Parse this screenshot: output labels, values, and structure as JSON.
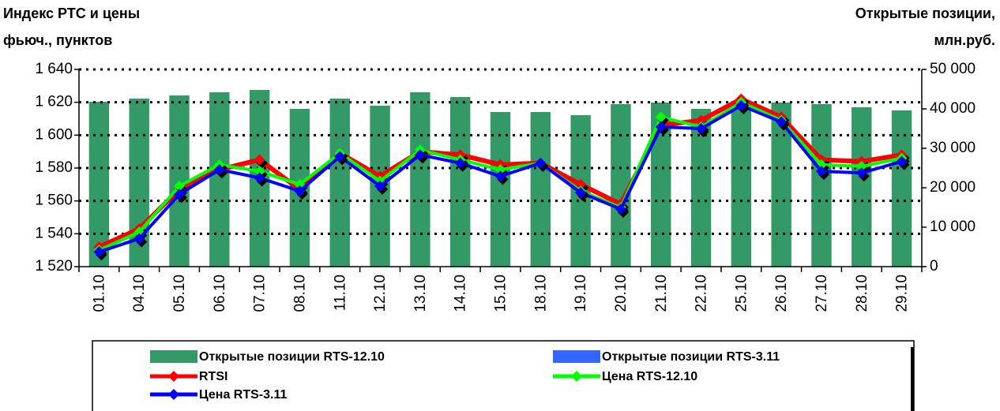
{
  "chart_data": {
    "type": "bar_line",
    "y_label": [
      "Индекс РТС и цены",
      "фьюч., пунктов"
    ],
    "y2_label": [
      "Открытые позиции,",
      "млн.руб."
    ],
    "categories": [
      "01.10",
      "04.10",
      "05.10",
      "06.10",
      "07.10",
      "08.10",
      "11.10",
      "12.10",
      "13.10",
      "14.10",
      "15.10",
      "18.10",
      "19.10",
      "20.10",
      "21.10",
      "22.10",
      "25.10",
      "26.10",
      "27.10",
      "28.10",
      "29.10"
    ],
    "ylim": [
      1520,
      1640
    ],
    "yticks": [
      {
        "value": 1520,
        "label": "1 520"
      },
      {
        "value": 1540,
        "label": "1 540"
      },
      {
        "value": 1560,
        "label": "1 560"
      },
      {
        "value": 1580,
        "label": "1 580"
      },
      {
        "value": 1600,
        "label": "1 600"
      },
      {
        "value": 1620,
        "label": "1 620"
      },
      {
        "value": 1640,
        "label": "1 640"
      }
    ],
    "y2lim": [
      0,
      50000
    ],
    "y2ticks": [
      0,
      {
        "value": 10000,
        "label": "10 000"
      },
      {
        "value": 20000,
        "label": "20 000"
      },
      {
        "value": 30000,
        "label": "30 000"
      },
      {
        "value": 40000,
        "label": "40 000"
      },
      {
        "value": 50000,
        "label": "50 000"
      }
    ],
    "grid": true,
    "series": [
      {
        "name": "Открытые позиции RTS-12.10",
        "type": "bar",
        "axis": "y2",
        "color": "#339966",
        "values": [
          41800,
          42600,
          43400,
          44200,
          44800,
          40000,
          42600,
          40800,
          44200,
          43000,
          39200,
          39200,
          38400,
          41200,
          41600,
          40000,
          42000,
          41600,
          41200,
          40400,
          39600
        ]
      },
      {
        "name": "Открытые позиции RTS-3.11",
        "type": "bar",
        "axis": "y2",
        "color": "#3366ff",
        "values": [
          null,
          null,
          null,
          null,
          null,
          null,
          null,
          null,
          null,
          null,
          null,
          null,
          null,
          null,
          null,
          null,
          null,
          null,
          null,
          null,
          null
        ]
      },
      {
        "name": "RTSI",
        "type": "line",
        "color": "#ff0000",
        "values": [
          1532,
          1543,
          1567,
          1579,
          1585,
          1567,
          1589,
          1575,
          1590,
          1588,
          1582,
          1583,
          1570,
          1558,
          1606,
          1609,
          1622,
          1611,
          1585,
          1584,
          1588
        ]
      },
      {
        "name": "Цена RTS-12.10",
        "type": "line",
        "color": "#00ff00",
        "values": [
          1530,
          1541,
          1569,
          1582,
          1578,
          1570,
          1589,
          1572,
          1591,
          1585,
          1579,
          1583,
          1566,
          1556,
          1611,
          1605,
          1620,
          1609,
          1582,
          1581,
          1586
        ]
      },
      {
        "name": "Цена RTS-3.11",
        "type": "line",
        "color": "#0000ff",
        "values": [
          1529,
          1537,
          1564,
          1579,
          1574,
          1566,
          1587,
          1569,
          1588,
          1583,
          1575,
          1583,
          1565,
          1555,
          1605,
          1604,
          1618,
          1608,
          1578,
          1577,
          1584
        ]
      }
    ]
  }
}
